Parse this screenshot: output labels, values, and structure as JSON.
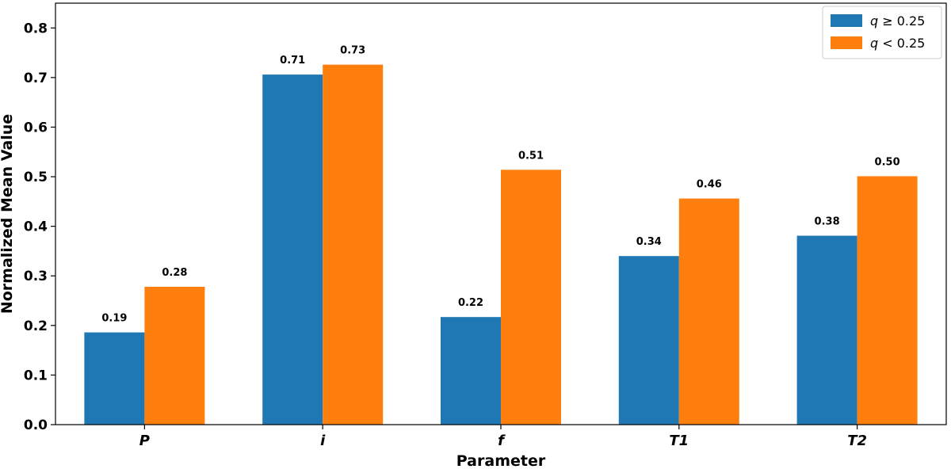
{
  "chart_data": {
    "type": "bar",
    "categories": [
      "P",
      "i",
      "f",
      "T1",
      "T2"
    ],
    "series": [
      {
        "name": "q ≥ 0.25",
        "legend_var": "q",
        "legend_rest": " ≥ 0.25",
        "color": "#1f77b4",
        "values": [
          0.186,
          0.706,
          0.217,
          0.34,
          0.381
        ],
        "labels": [
          "0.19",
          "0.71",
          "0.22",
          "0.34",
          "0.38"
        ]
      },
      {
        "name": "q < 0.25",
        "legend_var": "q",
        "legend_rest": " < 0.25",
        "color": "#ff7f0e",
        "values": [
          0.278,
          0.726,
          0.514,
          0.456,
          0.501
        ],
        "labels": [
          "0.28",
          "0.73",
          "0.51",
          "0.46",
          "0.50"
        ]
      }
    ],
    "xlabel": "Parameter",
    "ylabel": "Normalized Mean Value",
    "ylim": [
      0,
      0.85
    ],
    "yticks": [
      "0.0",
      "0.1",
      "0.2",
      "0.3",
      "0.4",
      "0.5",
      "0.6",
      "0.7",
      "0.8"
    ],
    "grid": false,
    "legend_position": "top-right"
  }
}
